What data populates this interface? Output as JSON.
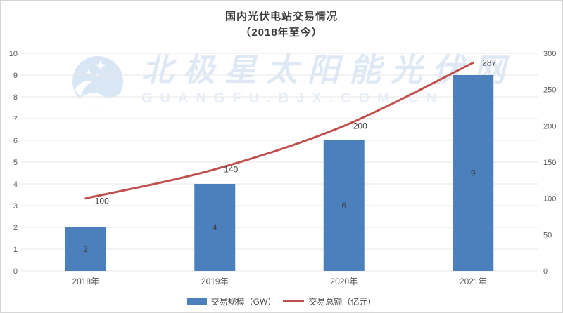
{
  "header": {
    "title_line1": "国内光伏电站交易情况",
    "title_line2": "（2018年至今）"
  },
  "watermark": {
    "cn": "北极星太阳能光伏网",
    "en": "GUANGFU.BJX.COM.CN",
    "cn_color": "#dfe9f5",
    "en_color": "#e7eef8",
    "logo_color": "#d9e6f4"
  },
  "legend": {
    "items": [
      {
        "label": "交易规模（GW）",
        "swatch": "bar",
        "color": "#4C80BC"
      },
      {
        "label": "交易总额（亿元）",
        "swatch": "line",
        "color": "#C0504D"
      }
    ]
  },
  "colors": {
    "bar": "#4C80BC",
    "line": "#C0504D",
    "grid": "#e7e7e7",
    "tick_text": "#595959",
    "value_text": "#404040"
  },
  "chart_data": {
    "type": "combo",
    "title": "国内光伏电站交易情况（2018年至今）",
    "categories": [
      "2018年",
      "2019年",
      "2020年",
      "2021年"
    ],
    "series": [
      {
        "name": "交易规模（GW）",
        "type": "bar",
        "axis": "left",
        "color": "#4C80BC",
        "values": [
          2,
          4,
          6,
          9
        ]
      },
      {
        "name": "交易总额（亿元）",
        "type": "line",
        "axis": "right",
        "color": "#C0504D",
        "values": [
          100,
          140,
          200,
          287
        ]
      }
    ],
    "left_axis": {
      "min": 0,
      "max": 10,
      "step": 1,
      "ticks": [
        0,
        1,
        2,
        3,
        4,
        5,
        6,
        7,
        8,
        9,
        10
      ]
    },
    "right_axis": {
      "min": 0,
      "max": 300,
      "step": 50,
      "ticks": [
        0,
        50,
        100,
        150,
        200,
        250,
        300
      ]
    },
    "grid": true,
    "data_labels": true,
    "legend_position": "bottom"
  }
}
